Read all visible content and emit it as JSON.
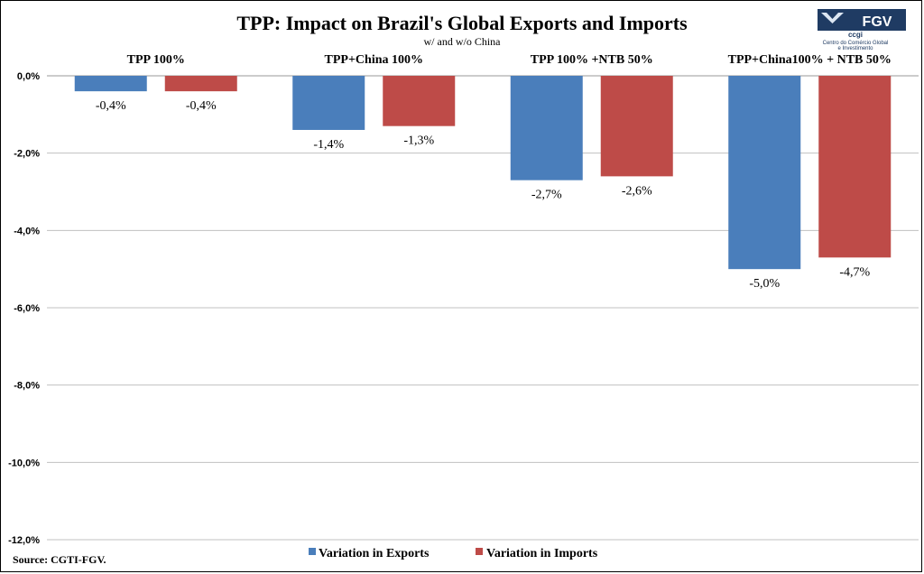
{
  "chart_data": {
    "type": "bar",
    "title": "TPP: Impact on Brazil's Global Exports and Imports",
    "subtitle": "w/ and w/o China",
    "categories": [
      "TPP 100%",
      "TPP+China 100%",
      "TPP 100% +NTB 50%",
      "TPP+China100% + NTB 50%"
    ],
    "series": [
      {
        "name": "Variation in Exports",
        "values": [
          -0.4,
          -1.4,
          -2.7,
          -5.0
        ],
        "color": "#4a7ebb"
      },
      {
        "name": "Variation in Imports",
        "values": [
          -0.4,
          -1.3,
          -2.6,
          -4.7
        ],
        "color": "#be4b48"
      }
    ],
    "data_labels": [
      [
        "-0,4%",
        "-1,4%",
        "-2,7%",
        "-5,0%"
      ],
      [
        "-0,4%",
        "-1,3%",
        "-2,6%",
        "-4,7%"
      ]
    ],
    "ylim": [
      -12,
      0
    ],
    "yticks": [
      0,
      -2,
      -4,
      -6,
      -8,
      -10,
      -12
    ],
    "ytick_labels": [
      "0,0%",
      "-2,0%",
      "-4,0%",
      "-6,0%",
      "-8,0%",
      "-10,0%",
      "-12,0%"
    ],
    "grid": true,
    "legend_position": "bottom"
  },
  "source_note": "Source: CGTI-FGV.",
  "logo": {
    "brand": "FGV",
    "sub": "ccgi",
    "caption_line1": "Centro do Comércio Global",
    "caption_line2": "e Investimento",
    "colors": {
      "dark": "#1f3b63",
      "light": "#dce6f2"
    }
  }
}
